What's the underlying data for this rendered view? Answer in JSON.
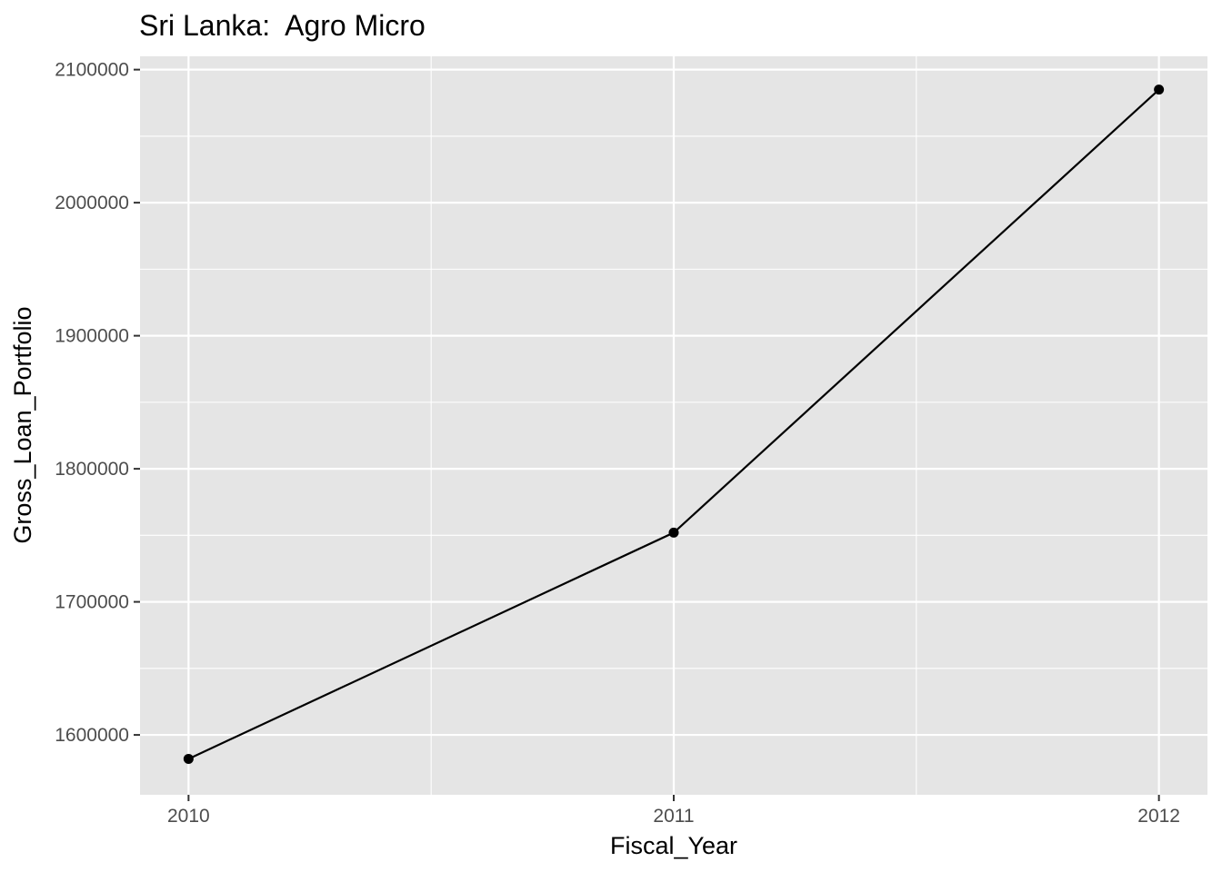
{
  "chart_data": {
    "type": "line",
    "title": "Sri Lanka:  Agro Micro",
    "xlabel": "Fiscal_Year",
    "ylabel": "Gross_Loan_Portfolio",
    "x": [
      2010,
      2011,
      2012
    ],
    "series": [
      {
        "values": [
          1582000,
          1752000,
          2085000
        ],
        "color": "#000000",
        "markers": true
      }
    ],
    "xticks": [
      "2010",
      "2011",
      "2012"
    ],
    "yticks": [
      "1600000",
      "1700000",
      "1800000",
      "1900000",
      "2000000",
      "2100000"
    ],
    "xlim": [
      2009.9,
      2012.1
    ],
    "ylim": [
      1555000,
      2110000
    ],
    "grid": true,
    "panel_background": "#e5e5e5",
    "grid_color": "#ffffff",
    "legend": "none"
  }
}
